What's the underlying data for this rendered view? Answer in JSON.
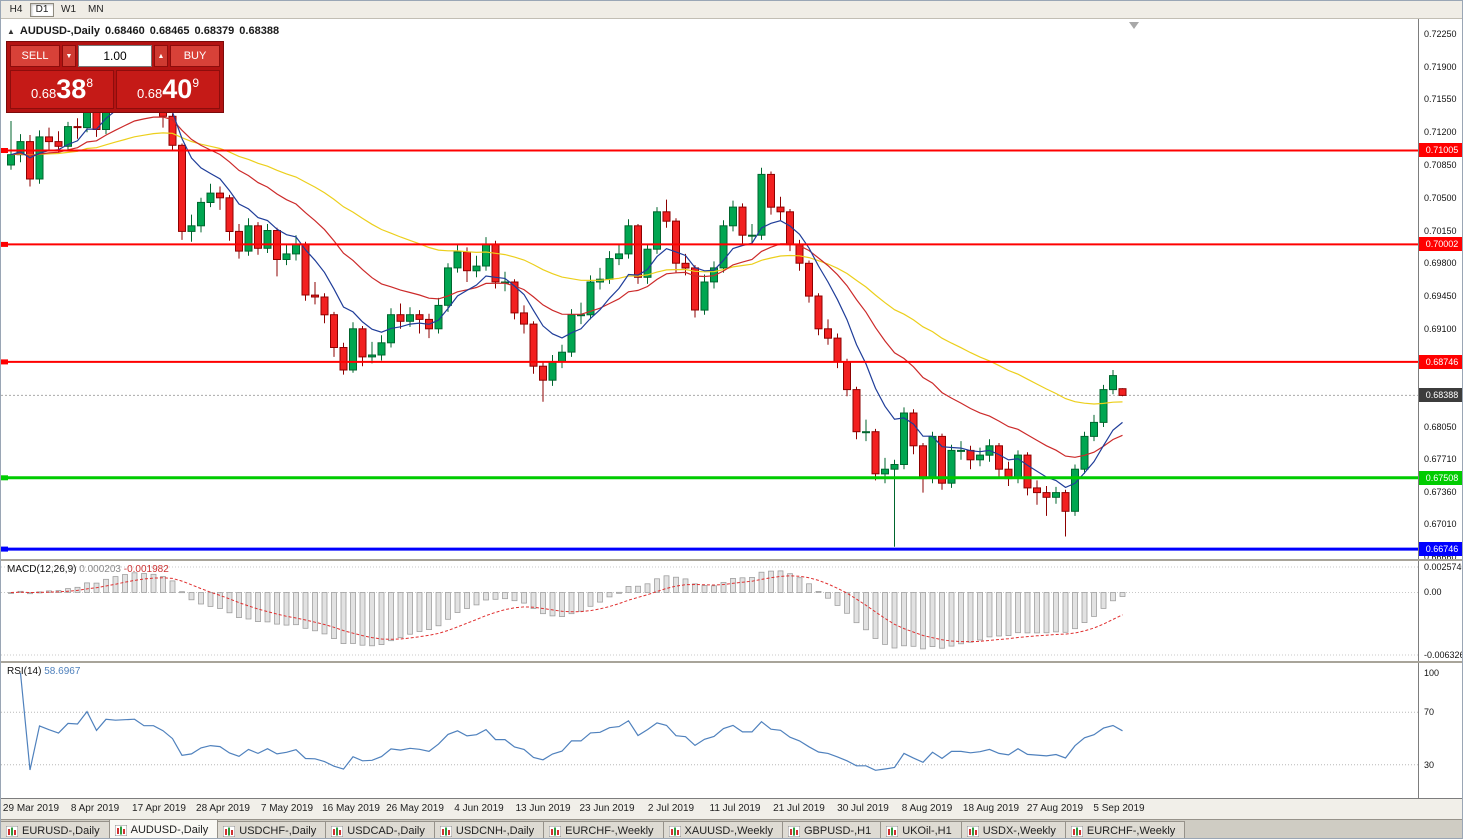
{
  "icons": {
    "collapse": "▲",
    "spin_down": "▼",
    "spin_up": "▲"
  },
  "toolbar": {
    "timeframe_buttons": [
      {
        "label": "H4",
        "active": false
      },
      {
        "label": "D1",
        "active": true
      },
      {
        "label": "W1",
        "active": false
      },
      {
        "label": "MN",
        "active": false
      }
    ]
  },
  "chart_title": {
    "symbol": "AUDUSD-,Daily",
    "open": "0.68460",
    "high": "0.68465",
    "low": "0.68379",
    "close": "0.68388"
  },
  "trade_panel": {
    "sell_label": "SELL",
    "buy_label": "BUY",
    "volume": "1.00",
    "sell_price": {
      "base": "0.68",
      "pips": "38",
      "pipette": "8"
    },
    "buy_price": {
      "base": "0.68",
      "pips": "40",
      "pipette": "9"
    }
  },
  "tabs": [
    {
      "label": "EURUSD-,Daily",
      "active": false
    },
    {
      "label": "AUDUSD-,Daily",
      "active": true
    },
    {
      "label": "USDCHF-,Daily",
      "active": false
    },
    {
      "label": "USDCAD-,Daily",
      "active": false
    },
    {
      "label": "USDCNH-,Daily",
      "active": false
    },
    {
      "label": "EURCHF-,Weekly",
      "active": false
    },
    {
      "label": "XAUUSD-,Weekly",
      "active": false
    },
    {
      "label": "GBPUSD-,H1",
      "active": false
    },
    {
      "label": "UKOil-,H1",
      "active": false
    },
    {
      "label": "USDX-,Weekly",
      "active": false
    },
    {
      "label": "EURCHF-,Weekly",
      "active": false
    }
  ],
  "chart_data": {
    "type": "candlestick",
    "symbol": "AUDUSD-",
    "timeframe": "Daily",
    "price_range": {
      "top": 0.7241,
      "bottom": 0.6664
    },
    "colors": {
      "up": "#00a651",
      "down": "#f22020",
      "up_border": "#00662e",
      "down_border": "#8e0000",
      "current_line": "#aaaaaa"
    },
    "y_axis_labels": [
      "0.72250",
      "0.71900",
      "0.71550",
      "0.71200",
      "0.70850",
      "0.70500",
      "0.70150",
      "0.69800",
      "0.69450",
      "0.69100",
      "0.68750",
      "0.68400",
      "0.68050",
      "0.67710",
      "0.67360",
      "0.67010",
      "0.66660"
    ],
    "date_labels": [
      "29 Mar 2019",
      "8 Apr 2019",
      "17 Apr 2019",
      "28 Apr 2019",
      "7 May 2019",
      "16 May 2019",
      "26 May 2019",
      "4 Jun 2019",
      "13 Jun 2019",
      "23 Jun 2019",
      "2 Jul 2019",
      "11 Jul 2019",
      "21 Jul 2019",
      "30 Jul 2019",
      "8 Aug 2019",
      "18 Aug 2019",
      "27 Aug 2019",
      "5 Sep 2019"
    ],
    "price_lines": [
      {
        "price": 0.71005,
        "label": "0.71005",
        "color": "#ff0000",
        "width": 2
      },
      {
        "price": 0.70002,
        "label": "0.70002",
        "color": "#ff0000",
        "width": 2
      },
      {
        "price": 0.68746,
        "label": "0.68746",
        "color": "#ff0000",
        "width": 2
      },
      {
        "price": 0.67508,
        "label": "0.67508",
        "color": "#00cc00",
        "width": 3
      },
      {
        "price": 0.66746,
        "label": "0.66746",
        "color": "#0000ff",
        "width": 3
      }
    ],
    "current_price": {
      "price": 0.68388,
      "label": "0.68388",
      "bg": "#3c3c3c"
    },
    "moving_averages": [
      {
        "name": "slow-ma",
        "period": 45,
        "color": "#eccf1c"
      },
      {
        "name": "medium-ma",
        "period": 20,
        "color": "#cc2a2a"
      },
      {
        "name": "fast-ma",
        "period": 8,
        "color": "#1f3d99"
      }
    ],
    "ohlc": [
      [
        0.7085,
        0.7132,
        0.708,
        0.7096
      ],
      [
        0.7096,
        0.7118,
        0.7088,
        0.711
      ],
      [
        0.711,
        0.7117,
        0.7062,
        0.707
      ],
      [
        0.707,
        0.7122,
        0.7065,
        0.7115
      ],
      [
        0.7115,
        0.7125,
        0.71,
        0.711
      ],
      [
        0.711,
        0.7121,
        0.7098,
        0.7105
      ],
      [
        0.7105,
        0.7131,
        0.71,
        0.7126
      ],
      [
        0.7126,
        0.7135,
        0.7113,
        0.7125
      ],
      [
        0.7125,
        0.7172,
        0.712,
        0.7167
      ],
      [
        0.7167,
        0.717,
        0.7115,
        0.7123
      ],
      [
        0.7123,
        0.718,
        0.7118,
        0.7175
      ],
      [
        0.7175,
        0.7184,
        0.7165,
        0.7172
      ],
      [
        0.7172,
        0.7182,
        0.716,
        0.7175
      ],
      [
        0.7175,
        0.7192,
        0.717,
        0.7178
      ],
      [
        0.7178,
        0.7182,
        0.7147,
        0.7155
      ],
      [
        0.7155,
        0.7165,
        0.7145,
        0.7155
      ],
      [
        0.7155,
        0.7158,
        0.7125,
        0.7137
      ],
      [
        0.7137,
        0.714,
        0.71,
        0.7106
      ],
      [
        0.7106,
        0.7108,
        0.7005,
        0.7014
      ],
      [
        0.7014,
        0.7032,
        0.7003,
        0.702
      ],
      [
        0.702,
        0.705,
        0.7013,
        0.7045
      ],
      [
        0.7045,
        0.7065,
        0.704,
        0.7055
      ],
      [
        0.7055,
        0.7062,
        0.7037,
        0.705
      ],
      [
        0.705,
        0.7053,
        0.7004,
        0.7014
      ],
      [
        0.7014,
        0.7022,
        0.6985,
        0.6993
      ],
      [
        0.6993,
        0.7028,
        0.6988,
        0.702
      ],
      [
        0.702,
        0.7024,
        0.6989,
        0.6996
      ],
      [
        0.6996,
        0.7022,
        0.6991,
        0.7015
      ],
      [
        0.7015,
        0.7018,
        0.6966,
        0.6984
      ],
      [
        0.6984,
        0.7,
        0.6978,
        0.699
      ],
      [
        0.699,
        0.701,
        0.6983,
        0.7
      ],
      [
        0.7,
        0.7003,
        0.694,
        0.6946
      ],
      [
        0.6946,
        0.696,
        0.6936,
        0.6944
      ],
      [
        0.6944,
        0.6948,
        0.6916,
        0.6925
      ],
      [
        0.6925,
        0.6928,
        0.688,
        0.689
      ],
      [
        0.689,
        0.6895,
        0.6861,
        0.6866
      ],
      [
        0.6866,
        0.6917,
        0.6863,
        0.691
      ],
      [
        0.691,
        0.6913,
        0.687,
        0.688
      ],
      [
        0.688,
        0.6896,
        0.6873,
        0.6882
      ],
      [
        0.6882,
        0.6903,
        0.6876,
        0.6895
      ],
      [
        0.6895,
        0.6932,
        0.689,
        0.6925
      ],
      [
        0.6925,
        0.6937,
        0.691,
        0.6918
      ],
      [
        0.6918,
        0.6933,
        0.6912,
        0.6925
      ],
      [
        0.6925,
        0.693,
        0.6905,
        0.692
      ],
      [
        0.692,
        0.6926,
        0.69,
        0.691
      ],
      [
        0.691,
        0.6943,
        0.6905,
        0.6935
      ],
      [
        0.6935,
        0.698,
        0.6928,
        0.6975
      ],
      [
        0.6975,
        0.7,
        0.697,
        0.6992
      ],
      [
        0.6992,
        0.6997,
        0.696,
        0.6972
      ],
      [
        0.6972,
        0.6988,
        0.6965,
        0.6977
      ],
      [
        0.6977,
        0.7008,
        0.6972,
        0.7
      ],
      [
        0.7,
        0.7004,
        0.6953,
        0.696
      ],
      [
        0.696,
        0.6971,
        0.695,
        0.696
      ],
      [
        0.696,
        0.6963,
        0.692,
        0.6927
      ],
      [
        0.6927,
        0.6935,
        0.6905,
        0.6915
      ],
      [
        0.6915,
        0.6918,
        0.6862,
        0.687
      ],
      [
        0.687,
        0.6875,
        0.6832,
        0.6855
      ],
      [
        0.6855,
        0.6882,
        0.6849,
        0.6875
      ],
      [
        0.6875,
        0.6893,
        0.6868,
        0.6885
      ],
      [
        0.6885,
        0.6931,
        0.688,
        0.6925
      ],
      [
        0.6925,
        0.6938,
        0.6915,
        0.6925
      ],
      [
        0.6925,
        0.6967,
        0.692,
        0.696
      ],
      [
        0.696,
        0.6975,
        0.6952,
        0.6963
      ],
      [
        0.6963,
        0.6993,
        0.6958,
        0.6985
      ],
      [
        0.6985,
        0.7,
        0.6978,
        0.699
      ],
      [
        0.699,
        0.7027,
        0.6985,
        0.702
      ],
      [
        0.702,
        0.7022,
        0.6958,
        0.6965
      ],
      [
        0.6965,
        0.7,
        0.6958,
        0.6995
      ],
      [
        0.6995,
        0.704,
        0.699,
        0.7035
      ],
      [
        0.7035,
        0.7048,
        0.7018,
        0.7025
      ],
      [
        0.7025,
        0.7028,
        0.697,
        0.698
      ],
      [
        0.698,
        0.699,
        0.6967,
        0.6975
      ],
      [
        0.6975,
        0.6978,
        0.6922,
        0.693
      ],
      [
        0.693,
        0.6968,
        0.6925,
        0.696
      ],
      [
        0.696,
        0.6982,
        0.6953,
        0.6975
      ],
      [
        0.6975,
        0.7026,
        0.697,
        0.702
      ],
      [
        0.702,
        0.7047,
        0.7014,
        0.704
      ],
      [
        0.704,
        0.7044,
        0.7001,
        0.701
      ],
      [
        0.701,
        0.7022,
        0.7,
        0.701
      ],
      [
        0.701,
        0.7082,
        0.7005,
        0.7075
      ],
      [
        0.7075,
        0.7078,
        0.7032,
        0.704
      ],
      [
        0.704,
        0.7051,
        0.7026,
        0.7035
      ],
      [
        0.7035,
        0.7038,
        0.6993,
        0.7
      ],
      [
        0.7,
        0.7005,
        0.6972,
        0.698
      ],
      [
        0.698,
        0.6983,
        0.6938,
        0.6945
      ],
      [
        0.6945,
        0.6948,
        0.6903,
        0.691
      ],
      [
        0.691,
        0.692,
        0.6893,
        0.69
      ],
      [
        0.69,
        0.6905,
        0.6868,
        0.6875
      ],
      [
        0.6875,
        0.6878,
        0.6838,
        0.6845
      ],
      [
        0.6845,
        0.6848,
        0.6792,
        0.68
      ],
      [
        0.68,
        0.6813,
        0.679,
        0.68
      ],
      [
        0.68,
        0.6803,
        0.6748,
        0.6755
      ],
      [
        0.6755,
        0.6772,
        0.6745,
        0.676
      ],
      [
        0.676,
        0.677,
        0.6677,
        0.6765
      ],
      [
        0.6765,
        0.6826,
        0.676,
        0.682
      ],
      [
        0.682,
        0.6824,
        0.6776,
        0.6785
      ],
      [
        0.6785,
        0.6788,
        0.6735,
        0.675
      ],
      [
        0.675,
        0.68,
        0.6745,
        0.6795
      ],
      [
        0.6795,
        0.6798,
        0.6738,
        0.6745
      ],
      [
        0.6745,
        0.6786,
        0.674,
        0.678
      ],
      [
        0.678,
        0.679,
        0.677,
        0.678
      ],
      [
        0.678,
        0.6785,
        0.676,
        0.677
      ],
      [
        0.677,
        0.6783,
        0.6763,
        0.6775
      ],
      [
        0.6775,
        0.6792,
        0.6768,
        0.6785
      ],
      [
        0.6785,
        0.6788,
        0.6752,
        0.676
      ],
      [
        0.676,
        0.6768,
        0.6742,
        0.675
      ],
      [
        0.675,
        0.678,
        0.6745,
        0.6775
      ],
      [
        0.6775,
        0.6778,
        0.6732,
        0.674
      ],
      [
        0.674,
        0.6748,
        0.6722,
        0.6735
      ],
      [
        0.6735,
        0.6742,
        0.671,
        0.673
      ],
      [
        0.673,
        0.6741,
        0.6723,
        0.6735
      ],
      [
        0.6735,
        0.6738,
        0.6688,
        0.6715
      ],
      [
        0.6715,
        0.6765,
        0.671,
        0.676
      ],
      [
        0.676,
        0.68,
        0.6755,
        0.6795
      ],
      [
        0.6795,
        0.6818,
        0.679,
        0.681
      ],
      [
        0.681,
        0.685,
        0.6805,
        0.6845
      ],
      [
        0.6845,
        0.6866,
        0.684,
        0.686
      ],
      [
        0.6846,
        0.68465,
        0.68379,
        0.68388
      ]
    ],
    "indicators": {
      "macd": {
        "label": "MACD(12,26,9)",
        "fast": 12,
        "slow": 26,
        "signal": 9,
        "value_main": "0.000203",
        "value_signal": "-0.001982",
        "scale_max": 0.002574,
        "scale_min": -0.006326,
        "axis_labels": [
          "0.0025740",
          "0.00",
          "-0.0063260"
        ]
      },
      "rsi": {
        "label": "RSI(14)",
        "period": 14,
        "value": "58.6967",
        "axis_labels": [
          "100",
          "70",
          "30"
        ],
        "levels": [
          70,
          30
        ],
        "scale_max": 100,
        "scale_min": 0
      }
    }
  }
}
